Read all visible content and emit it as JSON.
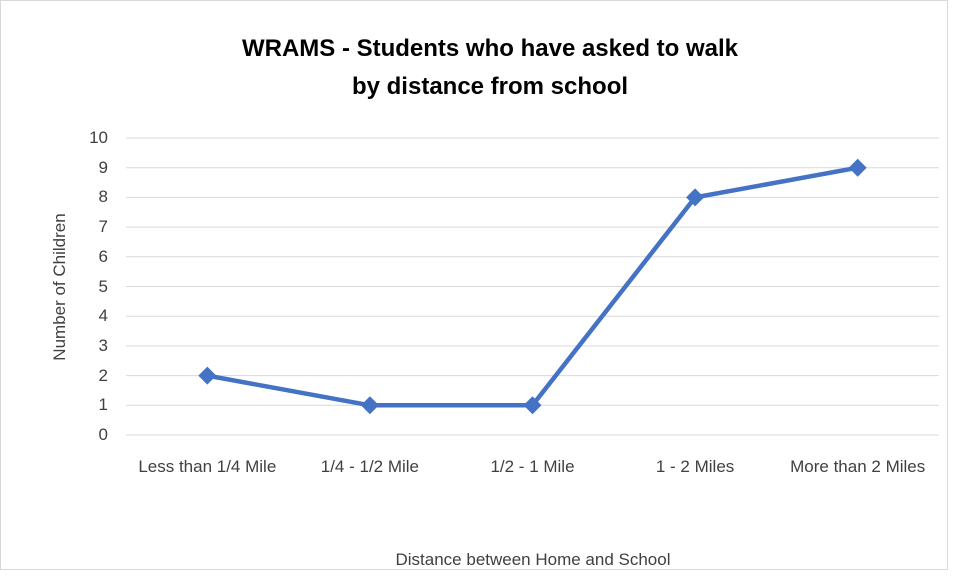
{
  "chart_data": {
    "type": "line",
    "title": "WRAMS - Students who have asked to walk by distance from school",
    "x_label": "Distance between Home and School",
    "y_label": "Number of Children",
    "categories": [
      "Less than 1/4 Mile",
      "1/4 - 1/2 Mile",
      "1/2 - 1 Mile",
      "1 - 2 Miles",
      "More than 2 Miles"
    ],
    "series": [
      {
        "name": "Number of Children",
        "color": "#4472c4",
        "values": [
          2,
          1,
          1,
          8,
          9
        ]
      }
    ],
    "ylim": [
      0,
      10
    ],
    "yticks": [
      0,
      1,
      2,
      3,
      4,
      5,
      6,
      7,
      8,
      9,
      10
    ],
    "grid": true
  }
}
